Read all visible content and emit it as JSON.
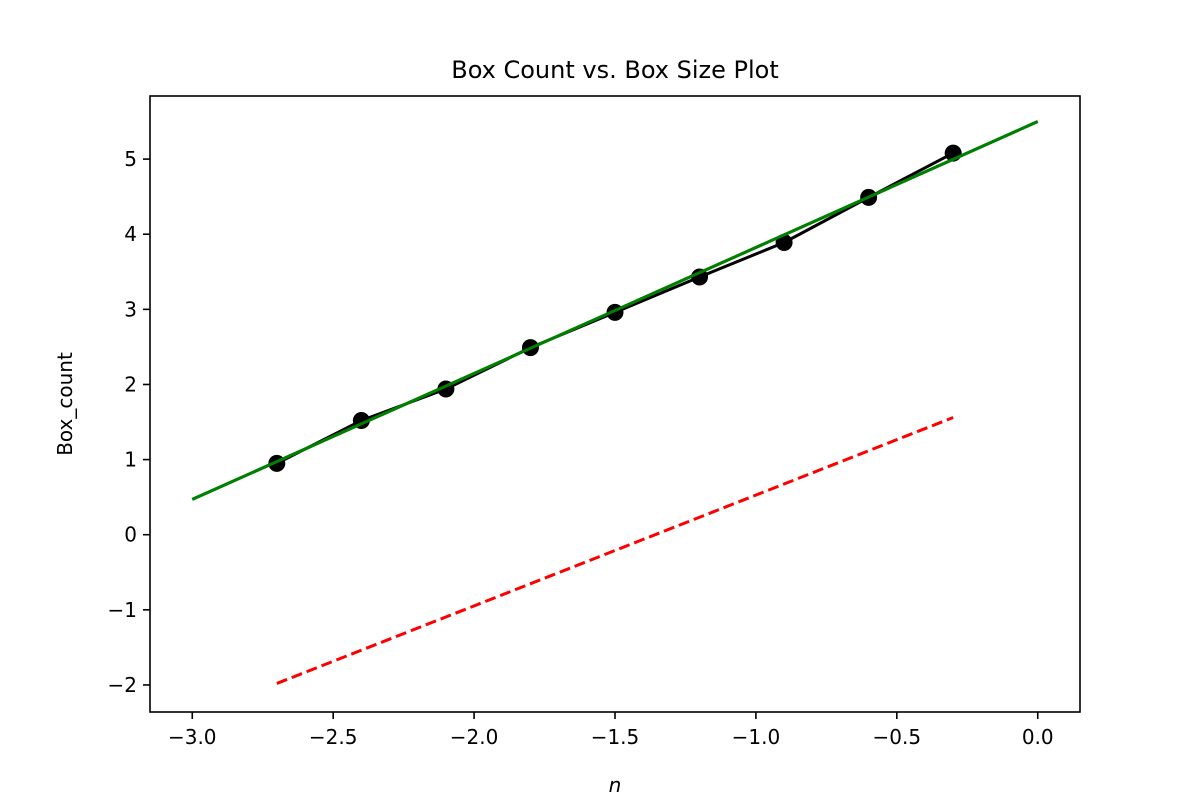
{
  "chart_data": {
    "type": "line",
    "title": "Box Count vs. Box Size Plot",
    "xlabel": "n",
    "ylabel": "Box_count",
    "xlim": [
      -3.15,
      0.15
    ],
    "ylim": [
      -2.36,
      5.84
    ],
    "x_ticks": [
      -3.0,
      -2.5,
      -2.0,
      -1.5,
      -1.0,
      -0.5,
      0.0
    ],
    "x_tick_labels": [
      "−3.0",
      "−2.5",
      "−2.0",
      "−1.5",
      "−1.0",
      "−0.5",
      "0.0"
    ],
    "y_ticks": [
      -2,
      -1,
      0,
      1,
      2,
      3,
      4,
      5
    ],
    "y_tick_labels": [
      "−2",
      "−1",
      "0",
      "1",
      "2",
      "3",
      "4",
      "5"
    ],
    "grid": false,
    "series": [
      {
        "style": "line-with-markers",
        "color": "#000000",
        "x": [
          -2.7,
          -2.4,
          -2.1,
          -1.8,
          -1.5,
          -1.2,
          -0.9,
          -0.6,
          -0.3
        ],
        "y": [
          0.95,
          1.52,
          1.94,
          2.49,
          2.96,
          3.43,
          3.89,
          4.49,
          5.08
        ]
      },
      {
        "style": "line",
        "color": "#008000",
        "x": [
          -3.0,
          0.0
        ],
        "y": [
          0.47,
          5.5
        ]
      },
      {
        "style": "dashed",
        "color": "#ff0000",
        "x": [
          -2.7,
          -0.3
        ],
        "y": [
          -1.98,
          1.56
        ]
      }
    ]
  }
}
